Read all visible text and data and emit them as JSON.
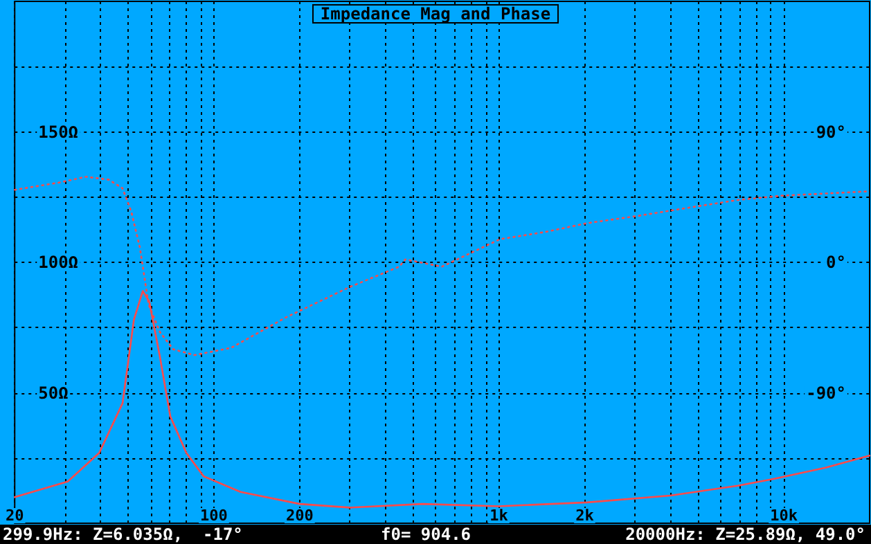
{
  "chart_data": {
    "type": "line",
    "title": "Impedance Mag and Phase",
    "log": "x",
    "grid": true,
    "xlim": [
      20,
      20000
    ],
    "xticks": [
      20,
      {
        "value": 30,
        "label": null
      },
      {
        "value": 40,
        "label": null
      },
      {
        "value": 50,
        "label": null
      },
      {
        "value": 60,
        "label": null
      },
      {
        "value": 70,
        "label": null
      },
      {
        "value": 80,
        "label": null
      },
      {
        "value": 90,
        "label": null
      },
      100,
      200,
      {
        "value": 300,
        "label": null
      },
      {
        "value": 400,
        "label": null
      },
      {
        "value": 500,
        "label": null
      },
      {
        "value": 600,
        "label": null
      },
      {
        "value": 700,
        "label": null
      },
      {
        "value": 800,
        "label": null
      },
      {
        "value": 900,
        "label": null
      },
      {
        "value": 1000,
        "label": "1k"
      },
      {
        "value": 2000,
        "label": "2k"
      },
      {
        "value": 3000,
        "label": null
      },
      {
        "value": 4000,
        "label": null
      },
      {
        "value": 5000,
        "label": null
      },
      {
        "value": 6000,
        "label": null
      },
      {
        "value": 7000,
        "label": null
      },
      {
        "value": 8000,
        "label": null
      },
      {
        "value": 9000,
        "label": null
      },
      {
        "value": 10000,
        "label": "10k"
      }
    ],
    "ylim": [
      0,
      200
    ],
    "yticks": [
      {
        "value": 25,
        "label": null
      },
      {
        "value": 50,
        "label": "50Ω"
      },
      {
        "value": 75,
        "label": null
      },
      {
        "value": 100,
        "label": "100Ω"
      },
      {
        "value": 125,
        "label": null
      },
      {
        "value": 150,
        "label": "150Ω"
      },
      {
        "value": 175,
        "label": null
      }
    ],
    "y2lim": [
      -180,
      180
    ],
    "y2ticks": [
      {
        "value": -90,
        "label": "-90°"
      },
      {
        "value": 0,
        "label": "0°"
      },
      {
        "value": 90,
        "label": "90°"
      }
    ],
    "series": [
      {
        "color": "#ff4a4a",
        "line_style": "solid",
        "x": [
          20,
          30.7,
          39.6,
          47.8,
          52.4,
          56.3,
          59.3,
          64.6,
          70.3,
          80,
          92,
          124,
          200,
          300,
          540,
          1000,
          2040,
          4000,
          6900,
          9200,
          14000,
          20000
        ],
        "values": [
          10,
          16,
          27,
          46,
          78,
          89,
          85,
          64,
          41,
          27,
          18,
          12,
          7.4,
          6,
          7.4,
          6.5,
          8,
          10.6,
          14.4,
          17,
          21.3,
          25.9
        ]
      },
      {
        "color": "#ff4a4a",
        "line_style": "dotted",
        "axis": "y2",
        "x": [
          20,
          28.6,
          35.6,
          42.8,
          47.8,
          51.3,
          55,
          59,
          64.6,
          72,
          85.5,
          115,
          179,
          300,
          447,
          470,
          631,
          1010,
          1460,
          2040,
          3070,
          4740,
          6900,
          9900,
          20000
        ],
        "values": [
          50,
          55,
          59,
          57,
          51,
          35,
          10,
          -29,
          -48,
          -60,
          -64,
          -59,
          -38,
          -17,
          -3,
          2,
          -3,
          16,
          21,
          27,
          32,
          38,
          43,
          46,
          49
        ]
      }
    ],
    "annotations": [
      "299.9Hz: Z=6.035Ω,  -17°",
      "f0= 904.6",
      "20000Hz: Z=25.89Ω, 49.0°"
    ]
  }
}
